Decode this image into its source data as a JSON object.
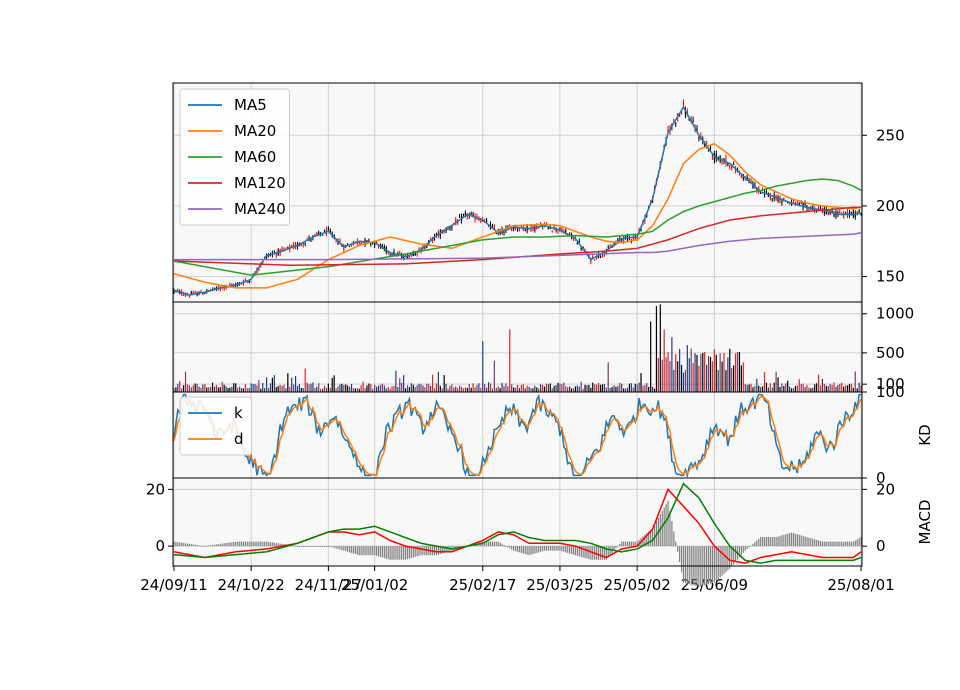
{
  "chart_data": {
    "type": "candlestick-with-indicators",
    "panels": [
      {
        "id": "price",
        "type": "candlestick",
        "y_ticks": [
          150,
          200,
          250
        ],
        "ylim": [
          132,
          287
        ],
        "legend": {
          "placement": "top-left",
          "entries": [
            "MA5",
            "MA20",
            "MA60",
            "MA120",
            "MA240"
          ]
        },
        "series": [
          {
            "name": "MA5",
            "color": "#1f77b4",
            "x": [
              0,
              8,
              16,
              24,
              32,
              40,
              48,
              56,
              64,
              72,
              80,
              88,
              96,
              104,
              112,
              120,
              128,
              136,
              144,
              152,
              160,
              168,
              176,
              184,
              192,
              200,
              208,
              216,
              224,
              232,
              240,
              248,
              256,
              264,
              272,
              280,
              288,
              296,
              304,
              312,
              320,
              328,
              336,
              344,
              352,
              356
            ],
            "values": [
              140,
              137,
              139,
              142,
              144,
              148,
              165,
              168,
              172,
              178,
              182,
              171,
              175,
              174,
              167,
              164,
              169,
              179,
              186,
              194,
              190,
              181,
              185,
              184,
              186,
              183,
              177,
              162,
              168,
              177,
              178,
              205,
              252,
              270,
              250,
              235,
              230,
              220,
              210,
              206,
              202,
              199,
              197,
              194,
              194,
              195
            ]
          },
          {
            "name": "MA20",
            "color": "#ff7f0e",
            "x": [
              0,
              16,
              32,
              48,
              64,
              80,
              96,
              112,
              128,
              144,
              160,
              176,
              192,
              200,
              208,
              216,
              224,
              232,
              240,
              248,
              256,
              264,
              272,
              280,
              288,
              296,
              304,
              312,
              320,
              328,
              336,
              344,
              352,
              356
            ],
            "values": [
              152,
              146,
              142,
              142,
              148,
              162,
              172,
              178,
              173,
              170,
              178,
              186,
              187,
              186,
              182,
              178,
              175,
              174,
              176,
              186,
              205,
              230,
              240,
              244,
              236,
              224,
              215,
              210,
              205,
              202,
              200,
              199,
              198,
              199
            ]
          },
          {
            "name": "MA60",
            "color": "#2ca02c",
            "x": [
              0,
              40,
              80,
              120,
              160,
              176,
              192,
              208,
              224,
              240,
              248,
              256,
              264,
              272,
              280,
              288,
              296,
              304,
              312,
              320,
              328,
              336,
              344,
              352,
              356
            ],
            "values": [
              161,
              151,
              157,
              166,
              176,
              178,
              178,
              179,
              178,
              180,
              182,
              190,
              196,
              200,
              203,
              206,
              209,
              211,
              214,
              216,
              218,
              219,
              218,
              214,
              211
            ]
          },
          {
            "name": "MA120",
            "color": "#d62728",
            "x": [
              0,
              60,
              120,
              160,
              200,
              224,
              240,
              256,
              272,
              288,
              304,
              320,
              336,
              352,
              356
            ],
            "values": [
              161,
              158,
              159,
              162,
              166,
              168,
              170,
              176,
              184,
              190,
              193,
              195,
              197,
              199,
              199
            ]
          },
          {
            "name": "MA240",
            "color": "#9467bd",
            "x": [
              0,
              80,
              160,
              200,
              240,
              248,
              256,
              272,
              288,
              304,
              320,
              336,
              352,
              356
            ],
            "values": [
              162,
              162,
              163,
              165,
              167,
              167,
              168,
              172,
              175,
              177,
              178,
              179,
              180,
              181
            ]
          }
        ]
      },
      {
        "id": "volume",
        "type": "bar",
        "y_ticks": [
          100,
          500,
          1000
        ],
        "ylim": [
          0,
          1150
        ]
      },
      {
        "id": "kd",
        "type": "line",
        "ylabel": "KD",
        "y_ticks": [
          0,
          100
        ],
        "ylim": [
          0,
          100
        ],
        "legend": {
          "placement": "top-left",
          "entries": [
            "k",
            "d"
          ]
        },
        "series": [
          {
            "name": "k",
            "color": "#1f77b4"
          },
          {
            "name": "d",
            "color": "#ff7f0e"
          }
        ]
      },
      {
        "id": "macd",
        "type": "line",
        "ylabel": "MACD",
        "y_ticks": [
          0,
          20
        ],
        "left_ticks": [
          0,
          20
        ],
        "ylim": [
          -7,
          24
        ],
        "series": [
          {
            "name": "macd-red",
            "color": "#ff0000",
            "x": [
              0,
              16,
              32,
              48,
              64,
              80,
              88,
              96,
              104,
              112,
              120,
              128,
              136,
              144,
              160,
              168,
              176,
              184,
              192,
              200,
              208,
              216,
              224,
              232,
              240,
              248,
              256,
              264,
              272,
              280,
              288,
              296,
              304,
              312,
              320,
              328,
              336,
              344,
              352,
              356
            ],
            "values": [
              -2,
              -4,
              -2,
              -1,
              1,
              5,
              5,
              4,
              5,
              2,
              0,
              -1,
              -2,
              -2,
              2,
              5,
              4,
              1,
              1,
              1,
              0,
              -2,
              -4,
              -1,
              0,
              6,
              20,
              14,
              8,
              0,
              -5,
              -6,
              -4,
              -3,
              -2,
              -3,
              -4,
              -4,
              -4,
              -2
            ]
          },
          {
            "name": "macd-green",
            "color": "#008000",
            "x": [
              0,
              16,
              32,
              48,
              64,
              80,
              88,
              96,
              104,
              112,
              120,
              128,
              136,
              144,
              160,
              168,
              176,
              184,
              192,
              200,
              208,
              216,
              224,
              232,
              240,
              248,
              256,
              264,
              272,
              280,
              288,
              296,
              304,
              312,
              320,
              328,
              336,
              344,
              352,
              356
            ],
            "values": [
              -3,
              -4,
              -3,
              -2,
              1,
              5,
              6,
              6,
              7,
              5,
              3,
              1,
              0,
              -1,
              1,
              4,
              5,
              3,
              2,
              2,
              2,
              1,
              -1,
              -2,
              -1,
              2,
              10,
              22,
              17,
              8,
              0,
              -5,
              -6,
              -5,
              -5,
              -5,
              -5,
              -5,
              -5,
              -4
            ]
          }
        ]
      }
    ],
    "x_tick_labels": [
      "24/09/11",
      "24/10/22",
      "24/11/27",
      "25/01/02",
      "25/02/17",
      "25/03/25",
      "25/05/02",
      "25/06/09",
      "25/08/01"
    ],
    "x_tick_index": [
      0,
      40,
      80,
      104,
      160,
      200,
      240,
      280,
      356
    ],
    "n_points": 357,
    "grid": true
  }
}
